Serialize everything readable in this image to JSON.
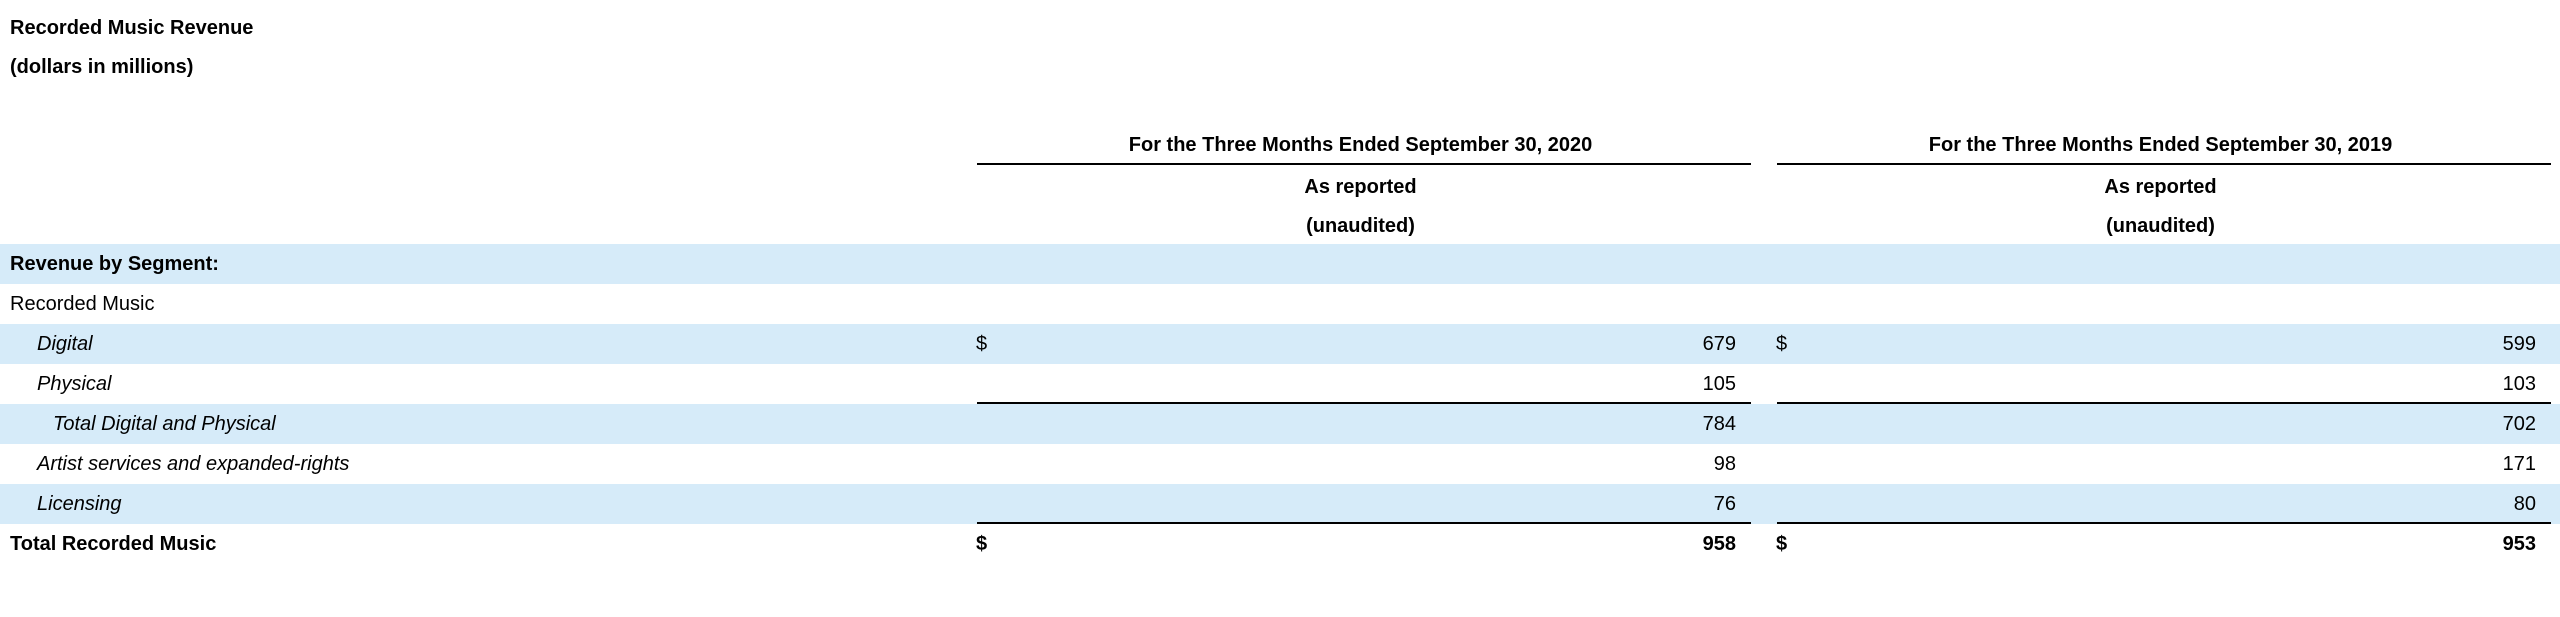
{
  "title": "Recorded Music Revenue",
  "subtitle": "(dollars in millions)",
  "columns": [
    {
      "period": "For the Three Months Ended September 30, 2020",
      "basis": "As reported",
      "audit": "(unaudited)"
    },
    {
      "period": "For the Three Months Ended September 30, 2019",
      "basis": "As reported",
      "audit": "(unaudited)"
    }
  ],
  "rows": [
    {
      "label": "Revenue by Segment:",
      "style": "bold",
      "cur1": "",
      "v1": "",
      "cur2": "",
      "v2": ""
    },
    {
      "label": "Recorded Music",
      "style": "plain",
      "cur1": "",
      "v1": "",
      "cur2": "",
      "v2": ""
    },
    {
      "label": "Digital",
      "style": "italic",
      "cur1": "$",
      "v1": "679",
      "cur2": "$",
      "v2": "599"
    },
    {
      "label": "Physical",
      "style": "italic",
      "cur1": "",
      "v1": "105",
      "cur2": "",
      "v2": "103"
    },
    {
      "label": "Total Digital and Physical",
      "style": "italic",
      "cur1": "",
      "v1": "784",
      "cur2": "",
      "v2": "702"
    },
    {
      "label": "Artist services and expanded-rights",
      "style": "italic",
      "cur1": "",
      "v1": "98",
      "cur2": "",
      "v2": "171"
    },
    {
      "label": "Licensing",
      "style": "italic",
      "cur1": "",
      "v1": "76",
      "cur2": "",
      "v2": "80"
    },
    {
      "label": "Total Recorded Music",
      "style": "bold",
      "cur1": "$",
      "v1": "958",
      "cur2": "$",
      "v2": "953"
    }
  ]
}
